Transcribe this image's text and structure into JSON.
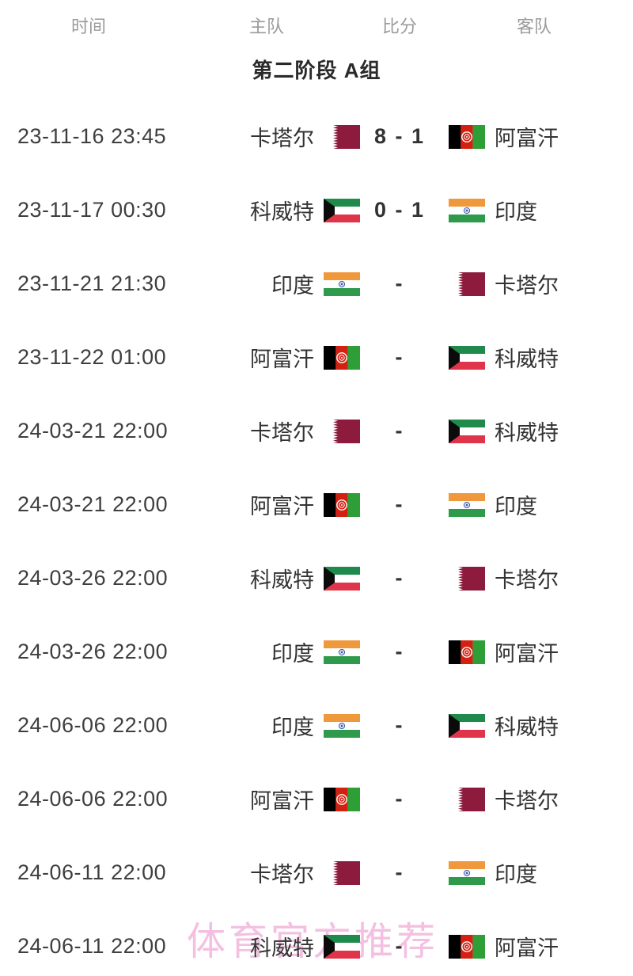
{
  "table": {
    "headers": [
      {
        "label": "时间"
      },
      {
        "label": "主队"
      },
      {
        "label": "比分"
      },
      {
        "label": "客队"
      }
    ],
    "group_title": "第二阶段 A组",
    "rows": [
      {
        "time": "23-11-16 23:45",
        "home": "卡塔尔",
        "home_flag": "qatar",
        "score": "8 - 1",
        "away": "阿富汗",
        "away_flag": "afghanistan"
      },
      {
        "time": "23-11-17 00:30",
        "home": "科威特",
        "home_flag": "kuwait",
        "score": "0 - 1",
        "away": "印度",
        "away_flag": "india"
      },
      {
        "time": "23-11-21 21:30",
        "home": "印度",
        "home_flag": "india",
        "score": "-",
        "away": "卡塔尔",
        "away_flag": "qatar"
      },
      {
        "time": "23-11-22 01:00",
        "home": "阿富汗",
        "home_flag": "afghanistan",
        "score": "-",
        "away": "科威特",
        "away_flag": "kuwait"
      },
      {
        "time": "24-03-21 22:00",
        "home": "卡塔尔",
        "home_flag": "qatar",
        "score": "-",
        "away": "科威特",
        "away_flag": "kuwait"
      },
      {
        "time": "24-03-21 22:00",
        "home": "阿富汗",
        "home_flag": "afghanistan",
        "score": "-",
        "away": "印度",
        "away_flag": "india"
      },
      {
        "time": "24-03-26 22:00",
        "home": "科威特",
        "home_flag": "kuwait",
        "score": "-",
        "away": "卡塔尔",
        "away_flag": "qatar"
      },
      {
        "time": "24-03-26 22:00",
        "home": "印度",
        "home_flag": "india",
        "score": "-",
        "away": "阿富汗",
        "away_flag": "afghanistan"
      },
      {
        "time": "24-06-06 22:00",
        "home": "印度",
        "home_flag": "india",
        "score": "-",
        "away": "科威特",
        "away_flag": "kuwait"
      },
      {
        "time": "24-06-06 22:00",
        "home": "阿富汗",
        "home_flag": "afghanistan",
        "score": "-",
        "away": "卡塔尔",
        "away_flag": "qatar"
      },
      {
        "time": "24-06-11 22:00",
        "home": "卡塔尔",
        "home_flag": "qatar",
        "score": "-",
        "away": "印度",
        "away_flag": "india"
      },
      {
        "time": "24-06-11 22:00",
        "home": "科威特",
        "home_flag": "kuwait",
        "score": "-",
        "away": "阿富汗",
        "away_flag": "afghanistan"
      }
    ]
  },
  "watermark": "体育官方推荐",
  "colors": {
    "header_text": "#9b9b9b",
    "body_text": "#333333",
    "watermark_pink": "#f0a8d8",
    "qatar_maroon": "#8d1b3d",
    "kuwait_green": "#1f8a4c",
    "kuwait_red": "#df3449",
    "afghanistan_red": "#d32011",
    "afghanistan_green": "#2e9e36",
    "india_saffron": "#f0993c",
    "india_green": "#2f9a4c",
    "india_navy": "#2f4faa"
  }
}
